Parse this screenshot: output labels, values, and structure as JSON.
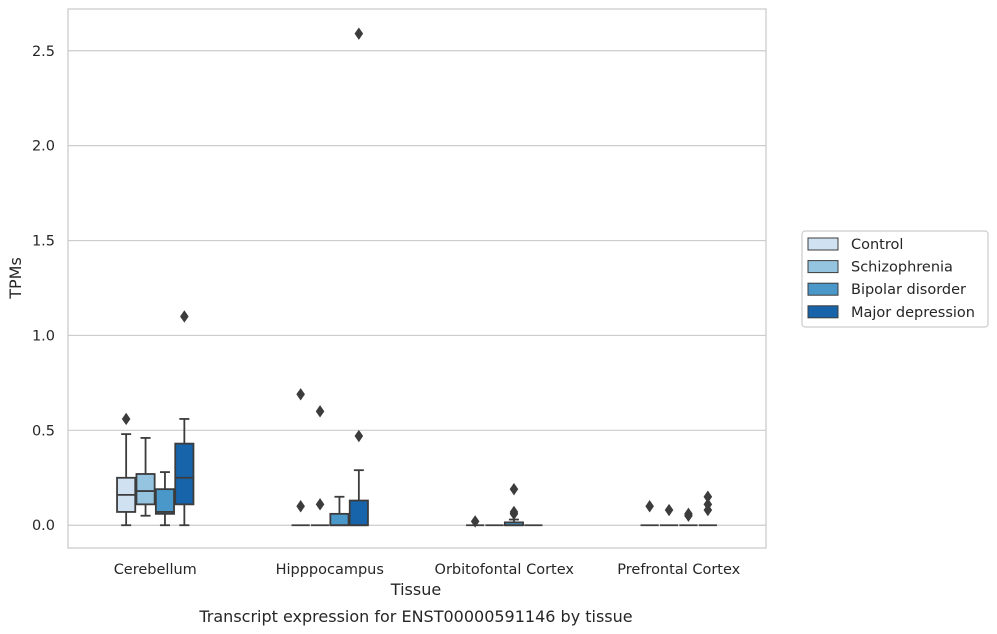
{
  "chart_data": {
    "type": "box",
    "caption": "Transcript expression for ENST00000591146 by tissue",
    "xlabel": "Tissue",
    "ylabel": "TPMs",
    "ylim": [
      -0.12,
      2.72
    ],
    "yticks": [
      0.0,
      0.5,
      1.0,
      1.5,
      2.0,
      2.5
    ],
    "ytick_labels": [
      "0.0",
      "0.5",
      "1.0",
      "1.5",
      "2.0",
      "2.5"
    ],
    "grid": "horizontal",
    "legend_position": "right",
    "categories": [
      "Cerebellum",
      "Hipppocampus",
      "Orbitofontal Cortex",
      "Prefrontal Cortex"
    ],
    "series": [
      {
        "name": "Control",
        "color": "#d0e1f2",
        "boxes": [
          {
            "whisker_low": 0.0,
            "q1": 0.07,
            "median": 0.16,
            "q3": 0.25,
            "whisker_high": 0.48,
            "outliers": [
              0.56
            ]
          },
          {
            "whisker_low": 0.0,
            "q1": 0.0,
            "median": 0.0,
            "q3": 0.0,
            "whisker_high": 0.0,
            "outliers": [
              0.1,
              0.69
            ]
          },
          {
            "whisker_low": 0.0,
            "q1": 0.0,
            "median": 0.0,
            "q3": 0.0,
            "whisker_high": 0.0,
            "outliers": [
              0.02
            ]
          },
          {
            "whisker_low": 0.0,
            "q1": 0.0,
            "median": 0.0,
            "q3": 0.0,
            "whisker_high": 0.0,
            "outliers": [
              0.1
            ]
          }
        ]
      },
      {
        "name": "Schizophrenia",
        "color": "#94c4df",
        "boxes": [
          {
            "whisker_low": 0.05,
            "q1": 0.11,
            "median": 0.18,
            "q3": 0.27,
            "whisker_high": 0.46,
            "outliers": []
          },
          {
            "whisker_low": 0.0,
            "q1": 0.0,
            "median": 0.0,
            "q3": 0.0,
            "whisker_high": 0.0,
            "outliers": [
              0.11,
              0.6
            ]
          },
          {
            "whisker_low": 0.0,
            "q1": 0.0,
            "median": 0.0,
            "q3": 0.0,
            "whisker_high": 0.0,
            "outliers": []
          },
          {
            "whisker_low": 0.0,
            "q1": 0.0,
            "median": 0.0,
            "q3": 0.0,
            "whisker_high": 0.0,
            "outliers": [
              0.08
            ]
          }
        ]
      },
      {
        "name": "Bipolar disorder",
        "color": "#4a98c9",
        "boxes": [
          {
            "whisker_low": 0.0,
            "q1": 0.06,
            "median": 0.07,
            "q3": 0.19,
            "whisker_high": 0.28,
            "outliers": []
          },
          {
            "whisker_low": 0.0,
            "q1": 0.0,
            "median": 0.0,
            "q3": 0.06,
            "whisker_high": 0.15,
            "outliers": []
          },
          {
            "whisker_low": 0.0,
            "q1": 0.0,
            "median": 0.0,
            "q3": 0.015,
            "whisker_high": 0.03,
            "outliers": [
              0.06,
              0.07,
              0.19
            ]
          },
          {
            "whisker_low": 0.0,
            "q1": 0.0,
            "median": 0.0,
            "q3": 0.0,
            "whisker_high": 0.0,
            "outliers": [
              0.05,
              0.06
            ]
          }
        ]
      },
      {
        "name": "Major depression",
        "color": "#1764ab",
        "boxes": [
          {
            "whisker_low": 0.0,
            "q1": 0.11,
            "median": 0.25,
            "q3": 0.43,
            "whisker_high": 0.56,
            "outliers": [
              1.1
            ]
          },
          {
            "whisker_low": 0.0,
            "q1": 0.0,
            "median": 0.0,
            "q3": 0.13,
            "whisker_high": 0.29,
            "outliers": [
              0.47,
              2.59
            ]
          },
          {
            "whisker_low": 0.0,
            "q1": 0.0,
            "median": 0.0,
            "q3": 0.0,
            "whisker_high": 0.0,
            "outliers": []
          },
          {
            "whisker_low": 0.0,
            "q1": 0.0,
            "median": 0.0,
            "q3": 0.0,
            "whisker_high": 0.0,
            "outliers": [
              0.08,
              0.11,
              0.15
            ]
          }
        ]
      }
    ]
  }
}
